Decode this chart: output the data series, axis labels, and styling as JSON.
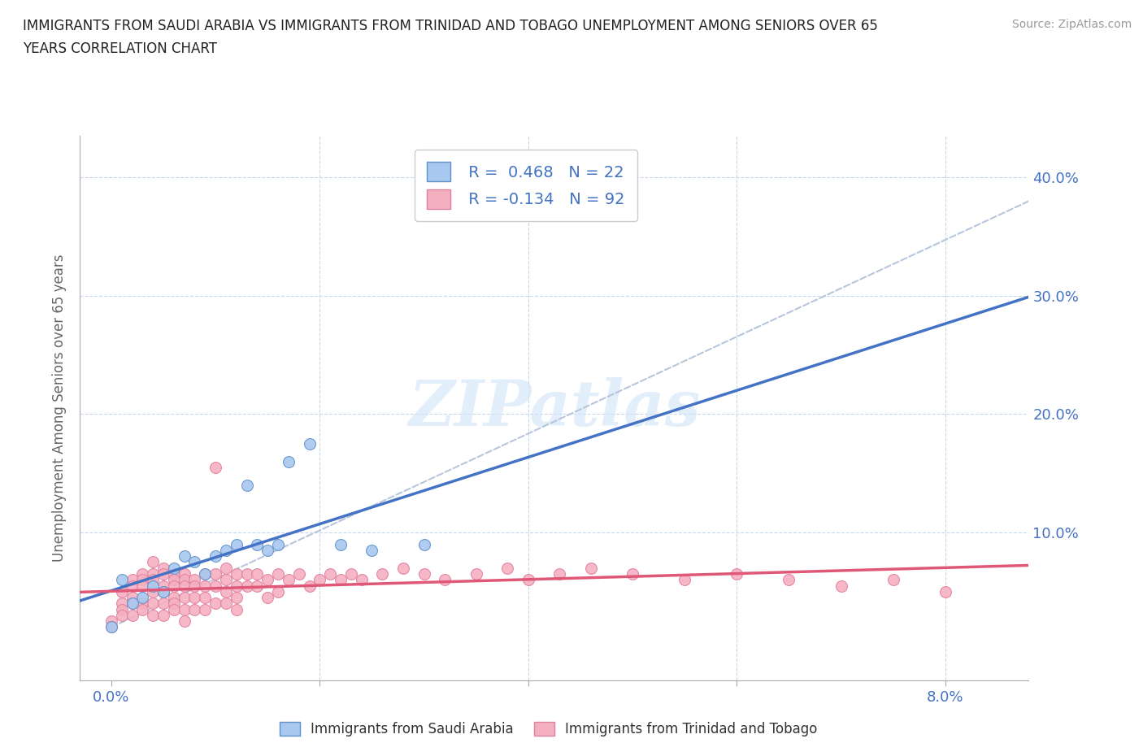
{
  "title_line1": "IMMIGRANTS FROM SAUDI ARABIA VS IMMIGRANTS FROM TRINIDAD AND TOBAGO UNEMPLOYMENT AMONG SENIORS OVER 65",
  "title_line2": "YEARS CORRELATION CHART",
  "source": "Source: ZipAtlas.com",
  "ylabel": "Unemployment Among Seniors over 65 years",
  "ytick_vals": [
    0.0,
    0.1,
    0.2,
    0.3,
    0.4
  ],
  "ytick_labels": [
    "",
    "10.0%",
    "20.0%",
    "30.0%",
    "40.0%"
  ],
  "xtick_vals": [
    0.0,
    0.02,
    0.04,
    0.06,
    0.08
  ],
  "xtick_labels": [
    "0.0%",
    "",
    "",
    "",
    "8.0%"
  ],
  "xlim": [
    -0.003,
    0.088
  ],
  "ylim": [
    -0.025,
    0.435
  ],
  "R_saudi": 0.468,
  "N_saudi": 22,
  "R_trinidad": -0.134,
  "N_trinidad": 92,
  "color_saudi": "#a8c8f0",
  "color_trinidad": "#f5b0c0",
  "trendline_saudi_color": "#4472c4",
  "trendline_trinidad_color": "#e05878",
  "trendline_dashed_color": "#b0c0d8",
  "watermark": "ZIPatlas",
  "saudi_points": [
    [
      0.0,
      0.02
    ],
    [
      0.001,
      0.06
    ],
    [
      0.002,
      0.04
    ],
    [
      0.003,
      0.045
    ],
    [
      0.004,
      0.055
    ],
    [
      0.005,
      0.05
    ],
    [
      0.006,
      0.07
    ],
    [
      0.007,
      0.08
    ],
    [
      0.008,
      0.075
    ],
    [
      0.009,
      0.065
    ],
    [
      0.01,
      0.08
    ],
    [
      0.011,
      0.085
    ],
    [
      0.012,
      0.09
    ],
    [
      0.013,
      0.14
    ],
    [
      0.014,
      0.09
    ],
    [
      0.015,
      0.085
    ],
    [
      0.016,
      0.09
    ],
    [
      0.017,
      0.16
    ],
    [
      0.019,
      0.175
    ],
    [
      0.022,
      0.09
    ],
    [
      0.025,
      0.085
    ],
    [
      0.03,
      0.09
    ]
  ],
  "trinidad_points": [
    [
      0.0,
      0.025
    ],
    [
      0.0,
      0.02
    ],
    [
      0.001,
      0.05
    ],
    [
      0.001,
      0.04
    ],
    [
      0.001,
      0.035
    ],
    [
      0.001,
      0.03
    ],
    [
      0.002,
      0.06
    ],
    [
      0.002,
      0.055
    ],
    [
      0.002,
      0.045
    ],
    [
      0.002,
      0.04
    ],
    [
      0.002,
      0.03
    ],
    [
      0.003,
      0.065
    ],
    [
      0.003,
      0.06
    ],
    [
      0.003,
      0.055
    ],
    [
      0.003,
      0.04
    ],
    [
      0.003,
      0.035
    ],
    [
      0.004,
      0.075
    ],
    [
      0.004,
      0.065
    ],
    [
      0.004,
      0.06
    ],
    [
      0.004,
      0.05
    ],
    [
      0.004,
      0.04
    ],
    [
      0.004,
      0.03
    ],
    [
      0.005,
      0.07
    ],
    [
      0.005,
      0.065
    ],
    [
      0.005,
      0.055
    ],
    [
      0.005,
      0.05
    ],
    [
      0.005,
      0.04
    ],
    [
      0.005,
      0.03
    ],
    [
      0.006,
      0.065
    ],
    [
      0.006,
      0.06
    ],
    [
      0.006,
      0.055
    ],
    [
      0.006,
      0.045
    ],
    [
      0.006,
      0.04
    ],
    [
      0.006,
      0.035
    ],
    [
      0.007,
      0.065
    ],
    [
      0.007,
      0.06
    ],
    [
      0.007,
      0.055
    ],
    [
      0.007,
      0.045
    ],
    [
      0.007,
      0.035
    ],
    [
      0.007,
      0.025
    ],
    [
      0.008,
      0.06
    ],
    [
      0.008,
      0.055
    ],
    [
      0.008,
      0.045
    ],
    [
      0.008,
      0.035
    ],
    [
      0.009,
      0.065
    ],
    [
      0.009,
      0.055
    ],
    [
      0.009,
      0.045
    ],
    [
      0.009,
      0.035
    ],
    [
      0.01,
      0.155
    ],
    [
      0.01,
      0.065
    ],
    [
      0.01,
      0.055
    ],
    [
      0.01,
      0.04
    ],
    [
      0.011,
      0.07
    ],
    [
      0.011,
      0.06
    ],
    [
      0.011,
      0.05
    ],
    [
      0.011,
      0.04
    ],
    [
      0.012,
      0.065
    ],
    [
      0.012,
      0.055
    ],
    [
      0.012,
      0.045
    ],
    [
      0.012,
      0.035
    ],
    [
      0.013,
      0.065
    ],
    [
      0.013,
      0.055
    ],
    [
      0.014,
      0.065
    ],
    [
      0.014,
      0.055
    ],
    [
      0.015,
      0.06
    ],
    [
      0.015,
      0.045
    ],
    [
      0.016,
      0.065
    ],
    [
      0.016,
      0.05
    ],
    [
      0.017,
      0.06
    ],
    [
      0.018,
      0.065
    ],
    [
      0.019,
      0.055
    ],
    [
      0.02,
      0.06
    ],
    [
      0.021,
      0.065
    ],
    [
      0.022,
      0.06
    ],
    [
      0.023,
      0.065
    ],
    [
      0.024,
      0.06
    ],
    [
      0.026,
      0.065
    ],
    [
      0.028,
      0.07
    ],
    [
      0.03,
      0.065
    ],
    [
      0.032,
      0.06
    ],
    [
      0.035,
      0.065
    ],
    [
      0.038,
      0.07
    ],
    [
      0.04,
      0.06
    ],
    [
      0.043,
      0.065
    ],
    [
      0.046,
      0.07
    ],
    [
      0.05,
      0.065
    ],
    [
      0.055,
      0.06
    ],
    [
      0.06,
      0.065
    ],
    [
      0.065,
      0.06
    ],
    [
      0.07,
      0.055
    ],
    [
      0.075,
      0.06
    ],
    [
      0.08,
      0.05
    ]
  ]
}
